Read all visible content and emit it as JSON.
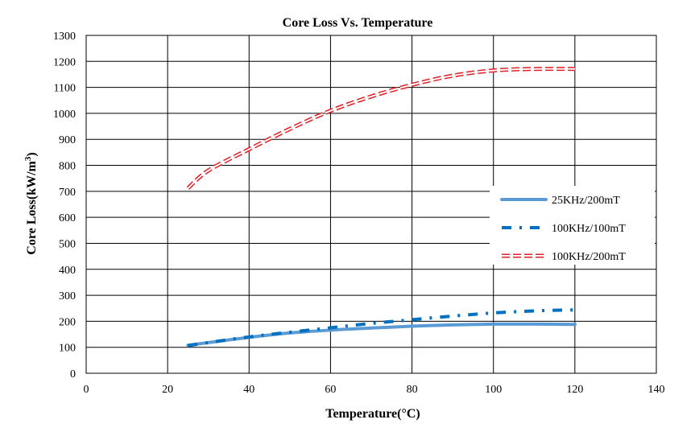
{
  "chart_data": {
    "type": "line",
    "title": "Core Loss Vs. Temperature",
    "xlabel": "Temperature(°C)",
    "ylabel_main": "Core Loss(kW/m",
    "ylabel_sup": "3",
    "ylabel_close": ")",
    "xlim": [
      0,
      140
    ],
    "ylim": [
      0,
      1300
    ],
    "xticks": [
      0,
      20,
      40,
      60,
      80,
      100,
      120,
      140
    ],
    "yticks": [
      0,
      100,
      200,
      300,
      400,
      500,
      600,
      700,
      800,
      900,
      1000,
      1100,
      1200,
      1300
    ],
    "grid": true,
    "legend_position": "right",
    "series": [
      {
        "name": "25KHz/200mT",
        "color": "#5B9BD5",
        "style": "solid",
        "x": [
          25,
          30,
          40,
          50,
          60,
          70,
          80,
          90,
          100,
          110,
          120
        ],
        "y": [
          108,
          118,
          138,
          155,
          166,
          174,
          181,
          186,
          189,
          189,
          188
        ]
      },
      {
        "name": "100KHz/100mT",
        "color": "#0070C0",
        "style": "dashdot",
        "x": [
          25,
          30,
          40,
          50,
          60,
          70,
          80,
          90,
          100,
          110,
          120
        ],
        "y": [
          106,
          118,
          140,
          158,
          175,
          192,
          206,
          220,
          232,
          240,
          244
        ]
      },
      {
        "name": "100KHz/200mT",
        "color": "#E31E24",
        "style": "double-dash",
        "x": [
          25,
          30,
          40,
          50,
          60,
          70,
          80,
          90,
          100,
          110,
          120
        ],
        "y": [
          712,
          780,
          862,
          940,
          1010,
          1065,
          1110,
          1145,
          1165,
          1171,
          1171
        ]
      }
    ]
  }
}
